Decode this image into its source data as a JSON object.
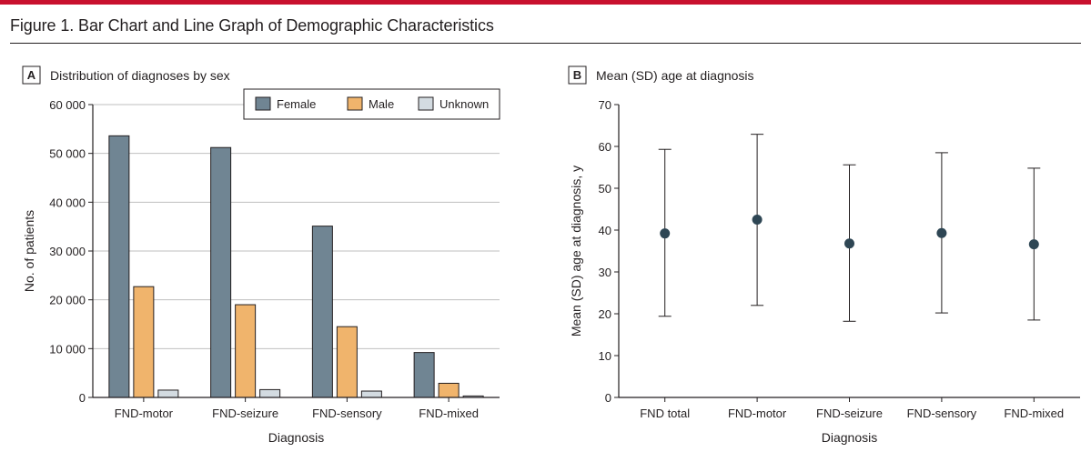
{
  "figure_title": "Figure 1. Bar Chart and Line Graph of Demographic Characteristics",
  "colors": {
    "accent": "#c8102e",
    "female": "#708593",
    "male": "#f0b46c",
    "unknown": "#d3dbe1",
    "marker": "#2e4654"
  },
  "chart_data": [
    {
      "panel_letter": "A",
      "title": "Distribution of diagnoses by sex",
      "type": "bar",
      "categories": [
        "FND-motor",
        "FND-seizure",
        "FND-sensory",
        "FND-mixed"
      ],
      "series": [
        {
          "name": "Female",
          "values": [
            53600,
            51200,
            35100,
            9200
          ]
        },
        {
          "name": "Male",
          "values": [
            22700,
            19000,
            14500,
            2900
          ]
        },
        {
          "name": "Unknown",
          "values": [
            1500,
            1600,
            1300,
            300
          ]
        }
      ],
      "xlabel": "Diagnosis",
      "ylabel": "No. of patients",
      "ylim": [
        0,
        60000
      ],
      "yticks": [
        0,
        10000,
        20000,
        30000,
        40000,
        50000,
        60000
      ],
      "ytick_labels": [
        "0",
        "10 000",
        "20 000",
        "30 000",
        "40 000",
        "50 000",
        "60 000"
      ],
      "grid": "horizontal",
      "legend": "top-right"
    },
    {
      "panel_letter": "B",
      "title": "Mean (SD) age at diagnosis",
      "type": "scatter",
      "categories": [
        "FND total",
        "FND-motor",
        "FND-seizure",
        "FND-sensory",
        "FND-mixed"
      ],
      "series": [
        {
          "values": [
            39.2,
            42.5,
            36.8,
            39.3,
            36.6
          ],
          "lower": [
            19.4,
            22.0,
            18.2,
            20.2,
            18.5
          ],
          "upper": [
            59.3,
            62.9,
            55.6,
            58.5,
            54.8
          ]
        }
      ],
      "xlabel": "Diagnosis",
      "ylabel": "Mean (SD) age at diagnosis, y",
      "ylim": [
        0,
        70
      ],
      "yticks": [
        0,
        10,
        20,
        30,
        40,
        50,
        60,
        70
      ],
      "grid": "none"
    }
  ]
}
